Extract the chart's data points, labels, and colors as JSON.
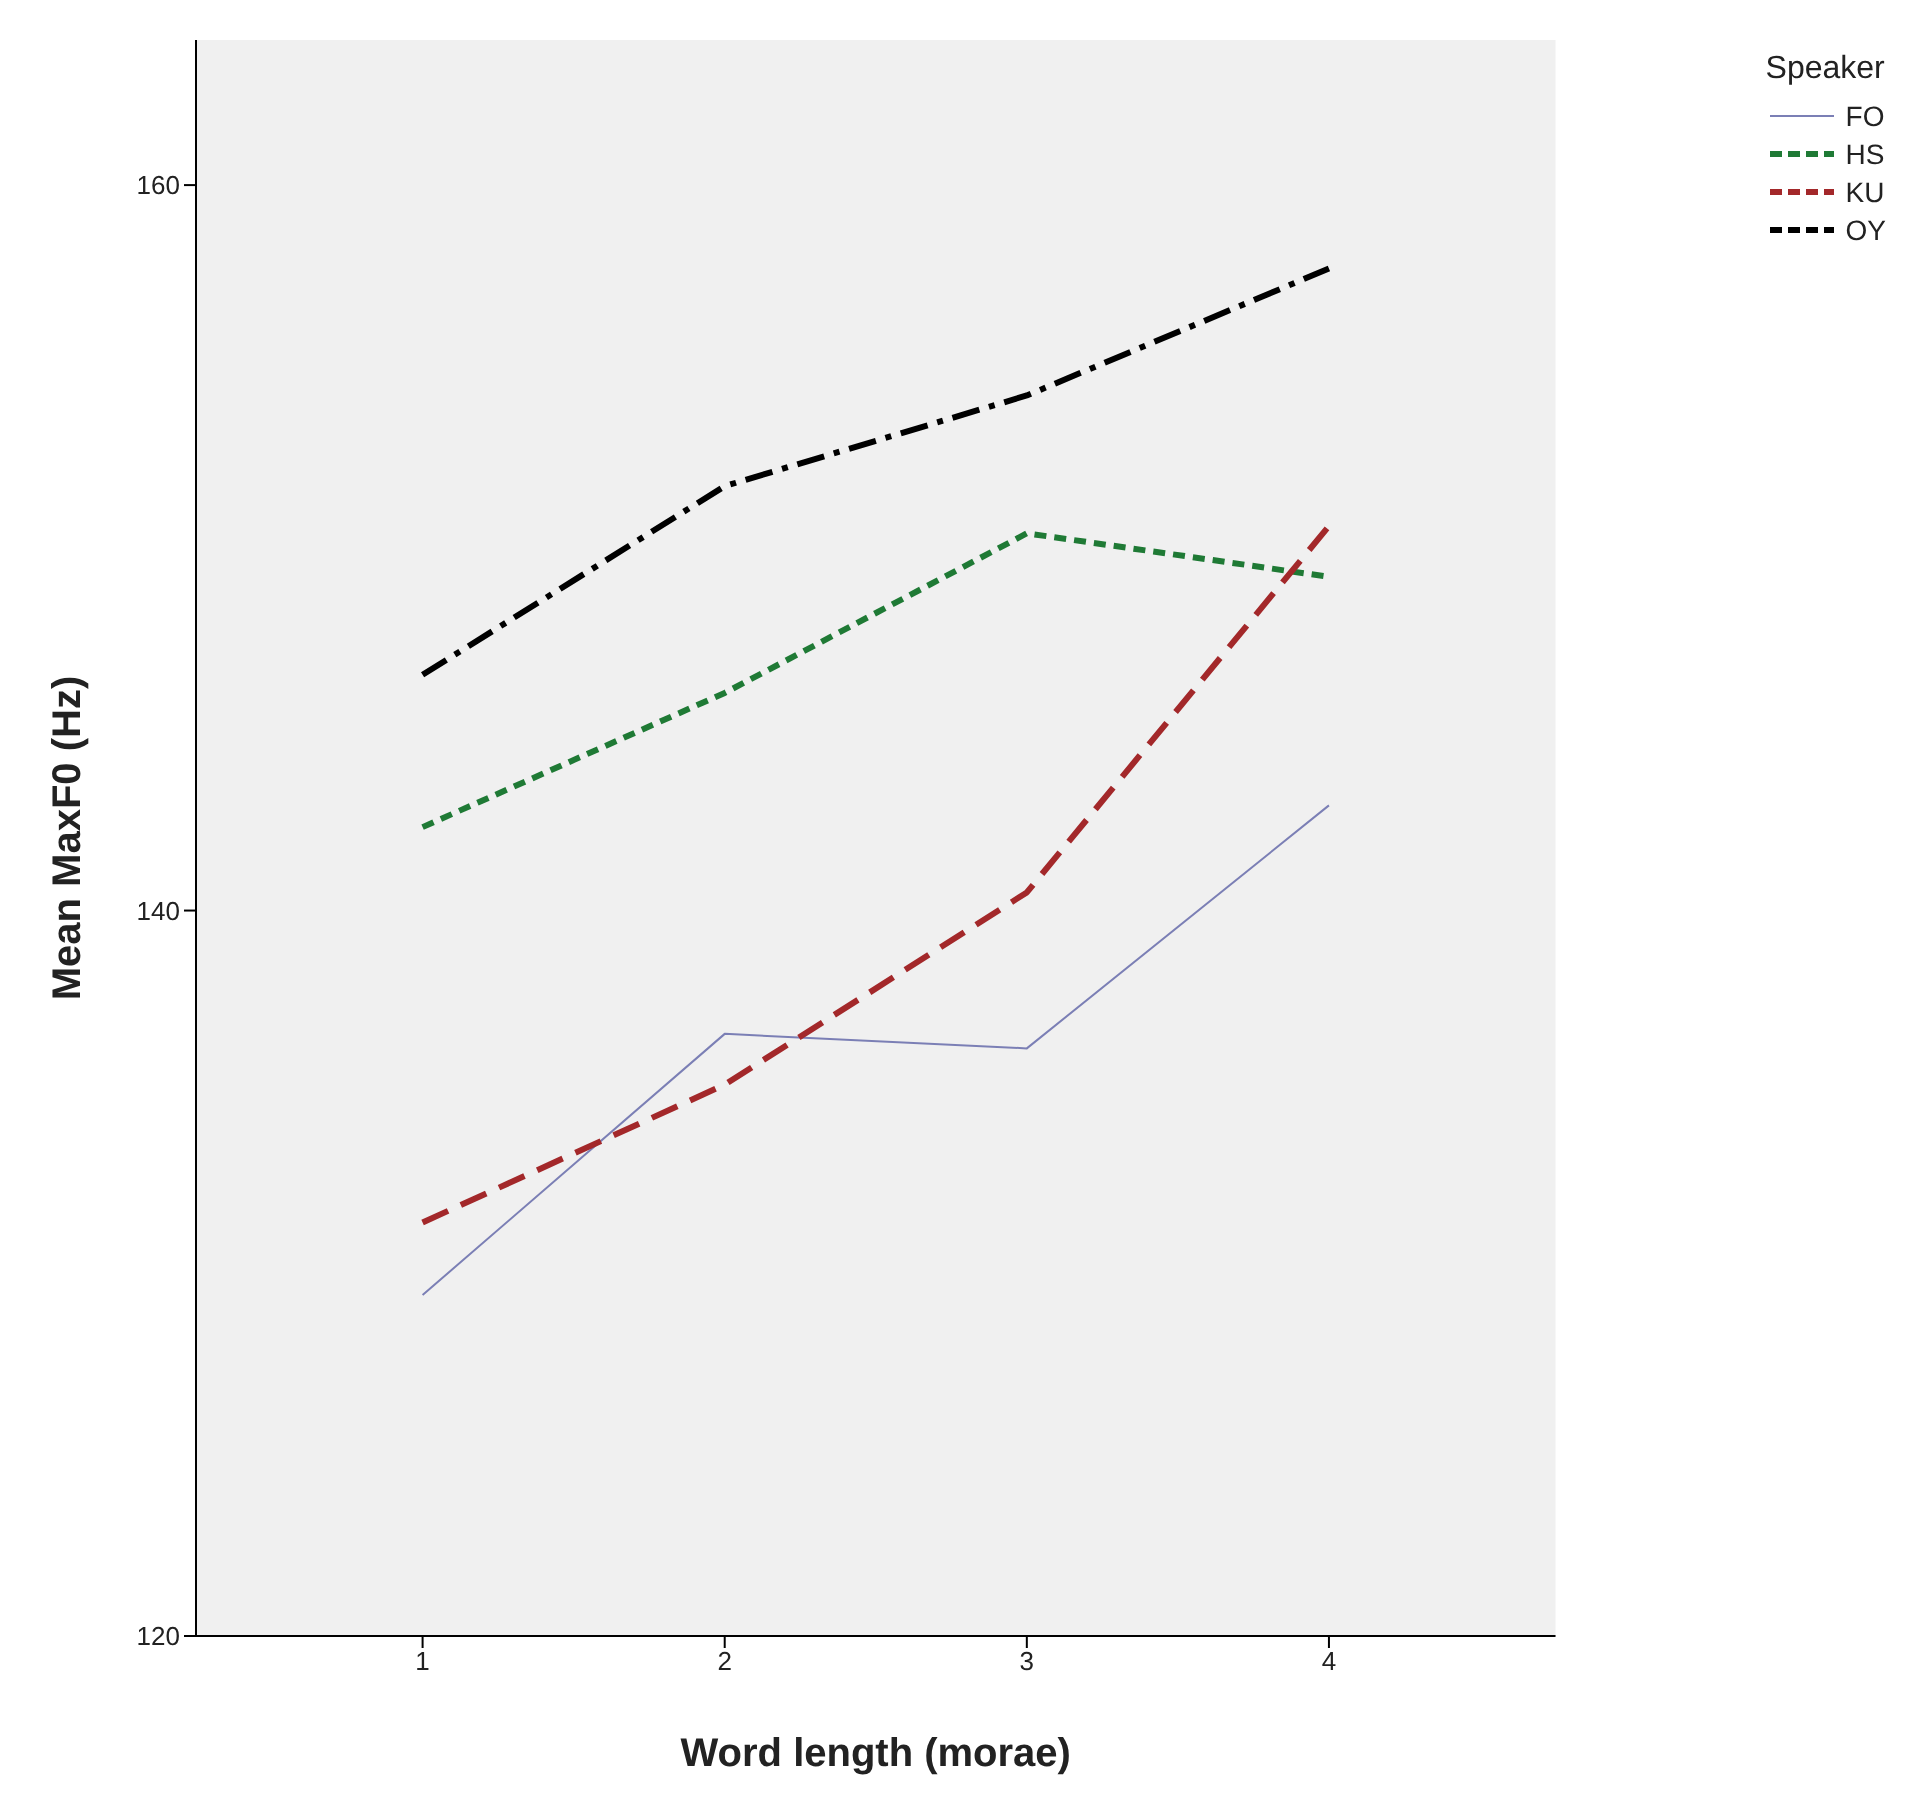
{
  "chart_data": {
    "type": "line",
    "xlabel": "Word length (morae)",
    "ylabel": "Mean MaxF0 (Hz)",
    "legend_title": "Speaker",
    "legend": "right",
    "grid": false,
    "marker": "none",
    "x": [
      1,
      2,
      3,
      4
    ],
    "xlim": [
      0.25,
      4.75
    ],
    "xticks": [
      1,
      2,
      3,
      4
    ],
    "ylim": [
      120,
      164
    ],
    "yticks": [
      120,
      140,
      160
    ],
    "series": [
      {
        "name": "FO",
        "color": "#7b7fb5",
        "line_style": "solid",
        "values": [
          129.4,
          136.6,
          136.2,
          142.9
        ]
      },
      {
        "name": "HS",
        "color": "#1f7a35",
        "line_style": "dotted",
        "values": [
          142.3,
          146.0,
          150.4,
          149.2
        ]
      },
      {
        "name": "KU",
        "color": "#a3282a",
        "line_style": "dashed",
        "values": [
          131.4,
          135.2,
          140.5,
          150.6
        ]
      },
      {
        "name": "OY",
        "color": "#000000",
        "line_style": "dashed",
        "values": [
          146.5,
          151.7,
          154.2,
          157.7
        ]
      }
    ]
  }
}
